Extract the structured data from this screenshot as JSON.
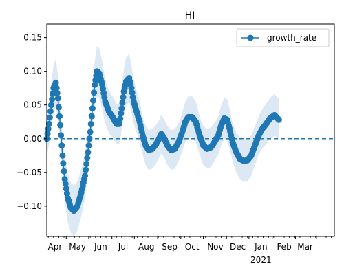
{
  "chart_data": {
    "type": "line",
    "title": "HI",
    "xlabel": "",
    "ylabel": "",
    "ylim": [
      -0.145,
      0.17
    ],
    "x_range": [
      "2020-03-06",
      "2021-03-25"
    ],
    "y_ticks": [
      -0.1,
      -0.05,
      0.0,
      0.05,
      0.1,
      0.15
    ],
    "y_tick_labels": [
      "−0.10",
      "−0.05",
      "0.00",
      "0.05",
      "0.10",
      "0.15"
    ],
    "x_tick_labels": [
      {
        "date": "2020-04-01",
        "label": "Apr"
      },
      {
        "date": "2020-05-01",
        "label": "May"
      },
      {
        "date": "2020-06-01",
        "label": "Jun"
      },
      {
        "date": "2020-07-01",
        "label": "Jul"
      },
      {
        "date": "2020-08-01",
        "label": "Aug"
      },
      {
        "date": "2020-09-01",
        "label": "Sep"
      },
      {
        "date": "2020-10-01",
        "label": "Oct"
      },
      {
        "date": "2020-11-01",
        "label": "Nov"
      },
      {
        "date": "2020-12-01",
        "label": "Dec"
      },
      {
        "date": "2021-01-01",
        "label": "Jan"
      },
      {
        "date": "2021-02-01",
        "label": "Feb"
      },
      {
        "date": "2021-03-01",
        "label": "Mar"
      }
    ],
    "year_label": {
      "date": "2021-01-01",
      "label": "2021"
    },
    "reference_line": 0.0,
    "legend_position": "top-right",
    "grid": false,
    "colors": {
      "line": "#1f77b4",
      "band": "#dce9f5"
    },
    "series": [
      {
        "name": "growth_rate",
        "points": [
          [
            "2020-03-06",
            0.0
          ],
          [
            "2020-03-09",
            0.022
          ],
          [
            "2020-03-12",
            0.05
          ],
          [
            "2020-03-15",
            0.075
          ],
          [
            "2020-03-18",
            0.083
          ],
          [
            "2020-03-21",
            0.06
          ],
          [
            "2020-03-24",
            0.02
          ],
          [
            "2020-03-27",
            -0.025
          ],
          [
            "2020-03-30",
            -0.06
          ],
          [
            "2020-04-03",
            -0.088
          ],
          [
            "2020-04-07",
            -0.102
          ],
          [
            "2020-04-11",
            -0.107
          ],
          [
            "2020-04-16",
            -0.1
          ],
          [
            "2020-04-21",
            -0.08
          ],
          [
            "2020-04-26",
            -0.055
          ],
          [
            "2020-04-30",
            -0.02
          ],
          [
            "2020-05-03",
            0.01
          ],
          [
            "2020-05-06",
            0.045
          ],
          [
            "2020-05-09",
            0.08
          ],
          [
            "2020-05-12",
            0.1
          ],
          [
            "2020-05-15",
            0.097
          ],
          [
            "2020-05-19",
            0.08
          ],
          [
            "2020-05-23",
            0.055
          ],
          [
            "2020-05-28",
            0.04
          ],
          [
            "2020-06-02",
            0.032
          ],
          [
            "2020-06-07",
            0.022
          ],
          [
            "2020-06-11",
            0.022
          ],
          [
            "2020-06-14",
            0.045
          ],
          [
            "2020-06-17",
            0.07
          ],
          [
            "2020-06-20",
            0.085
          ],
          [
            "2020-06-24",
            0.09
          ],
          [
            "2020-06-27",
            0.075
          ],
          [
            "2020-06-30",
            0.055
          ],
          [
            "2020-07-04",
            0.04
          ],
          [
            "2020-07-08",
            0.025
          ],
          [
            "2020-07-12",
            0.005
          ],
          [
            "2020-07-16",
            -0.01
          ],
          [
            "2020-07-20",
            -0.017
          ],
          [
            "2020-07-25",
            -0.015
          ],
          [
            "2020-07-30",
            -0.008
          ],
          [
            "2020-08-03",
            0.0
          ],
          [
            "2020-08-06",
            0.007
          ],
          [
            "2020-08-10",
            0.0
          ],
          [
            "2020-08-14",
            -0.01
          ],
          [
            "2020-08-19",
            -0.017
          ],
          [
            "2020-08-24",
            -0.015
          ],
          [
            "2020-08-29",
            -0.005
          ],
          [
            "2020-09-03",
            0.01
          ],
          [
            "2020-09-07",
            0.025
          ],
          [
            "2020-09-11",
            0.032
          ],
          [
            "2020-09-16",
            0.032
          ],
          [
            "2020-09-21",
            0.025
          ],
          [
            "2020-09-26",
            0.005
          ],
          [
            "2020-10-01",
            -0.01
          ],
          [
            "2020-10-06",
            -0.015
          ],
          [
            "2020-10-11",
            -0.013
          ],
          [
            "2020-10-16",
            -0.005
          ],
          [
            "2020-10-21",
            0.005
          ],
          [
            "2020-10-25",
            0.02
          ],
          [
            "2020-10-29",
            0.03
          ],
          [
            "2020-11-02",
            0.028
          ],
          [
            "2020-11-05",
            0.015
          ],
          [
            "2020-11-09",
            -0.005
          ],
          [
            "2020-11-14",
            -0.02
          ],
          [
            "2020-11-19",
            -0.03
          ],
          [
            "2020-11-24",
            -0.033
          ],
          [
            "2020-11-29",
            -0.032
          ],
          [
            "2020-12-04",
            -0.025
          ],
          [
            "2020-12-09",
            -0.01
          ],
          [
            "2020-12-14",
            0.005
          ],
          [
            "2020-12-19",
            0.015
          ],
          [
            "2020-12-24",
            0.022
          ],
          [
            "2020-12-29",
            0.03
          ],
          [
            "2021-01-04",
            0.035
          ],
          [
            "2021-01-10",
            0.028
          ]
        ]
      }
    ]
  }
}
